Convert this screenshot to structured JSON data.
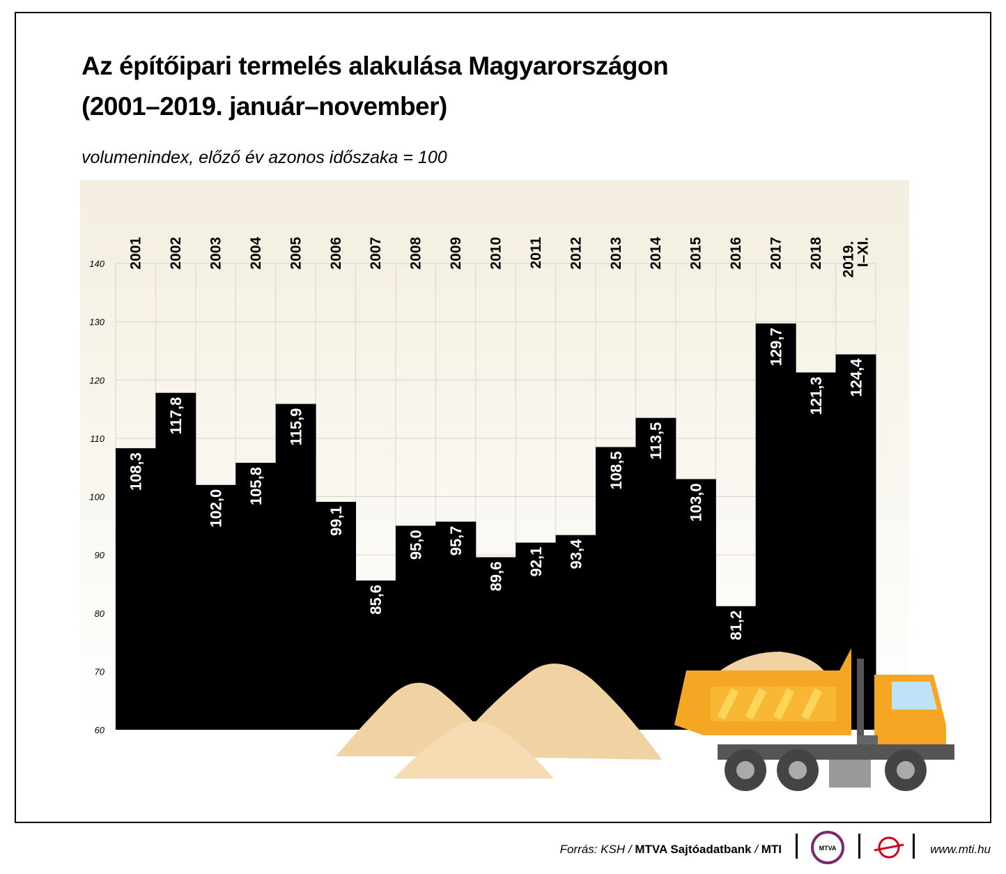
{
  "chart_data": {
    "type": "bar",
    "title_lines": [
      "Az építőipari termelés alakulása Magyarországon",
      "(2001–2019. január–november)"
    ],
    "subtitle": "volumenindex, előző év azonos időszaka = 100",
    "categories": [
      "2001",
      "2002",
      "2003",
      "2004",
      "2005",
      "2006",
      "2007",
      "2008",
      "2009",
      "2010",
      "2011",
      "2012",
      "2013",
      "2014",
      "2015",
      "2016",
      "2017",
      "2018",
      "2019. I–XI."
    ],
    "values": [
      108.3,
      117.8,
      102.0,
      105.8,
      115.9,
      99.1,
      85.6,
      95.0,
      95.7,
      89.6,
      92.1,
      93.4,
      108.5,
      113.5,
      103.0,
      81.2,
      129.7,
      121.3,
      124.4
    ],
    "value_labels": [
      "108,3",
      "117,8",
      "102,0",
      "105,8",
      "115,9",
      "99,1",
      "85,6",
      "95,0",
      "95,7",
      "89,6",
      "92,1",
      "93,4",
      "108,5",
      "113,5",
      "103,0",
      "81,2",
      "129,7",
      "121,3",
      "124,4"
    ],
    "color": "#000000",
    "ylim": [
      60,
      140
    ],
    "yticks": [
      60,
      70,
      80,
      90,
      100,
      110,
      120,
      130,
      140
    ],
    "grid": true
  },
  "footer": {
    "source": "Forrás: KSH",
    "separator": "/",
    "publisher": "MTVA Sajtóadatbank",
    "agency": "MTI",
    "logo": "MTVA",
    "url": "www.mti.hu"
  }
}
